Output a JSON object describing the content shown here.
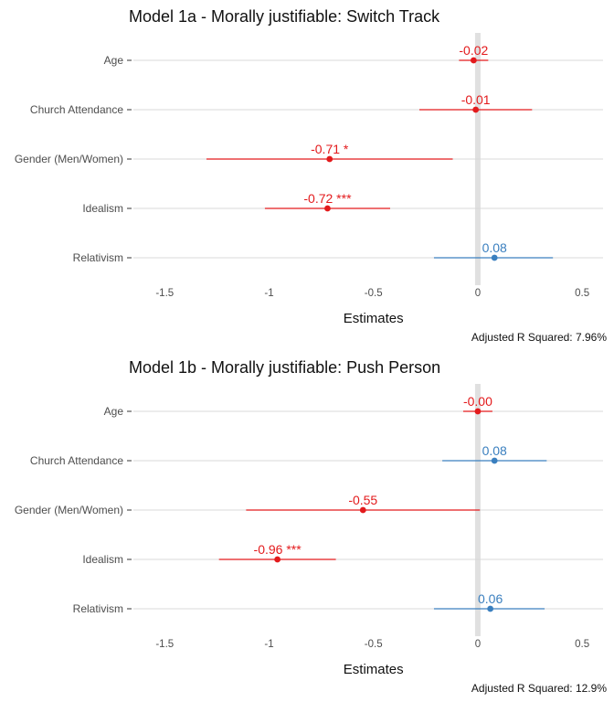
{
  "colors": {
    "negative": "#e31a1c",
    "positive": "#3a7fbf",
    "zero_line": "#e0e0e0",
    "grid": "#d9d9d9"
  },
  "chart_data": [
    {
      "type": "forest",
      "title": "Model 1a - Morally justifiable: Switch Track",
      "xlabel": "Estimates",
      "xlim": [
        -1.65,
        0.6
      ],
      "xticks": [
        -1.5,
        -1,
        -0.5,
        0,
        0.5
      ],
      "xtick_labels": [
        "-1.5",
        "-1",
        "-0.5",
        "0",
        "0.5"
      ],
      "footnote": "Adjusted R Squared: 7.96%",
      "rows": [
        {
          "term": "Age",
          "estimate": -0.02,
          "ci": [
            -0.09,
            0.05
          ],
          "label": "-0.02",
          "sign": "negative"
        },
        {
          "term": "Church Attendance",
          "estimate": -0.01,
          "ci": [
            -0.28,
            0.26
          ],
          "label": "-0.01",
          "sign": "negative"
        },
        {
          "term": "Gender (Men/Women)",
          "estimate": -0.71,
          "ci": [
            -1.3,
            -0.12
          ],
          "label": "-0.71 *",
          "sign": "negative"
        },
        {
          "term": "Idealism",
          "estimate": -0.72,
          "ci": [
            -1.02,
            -0.42
          ],
          "label": "-0.72 ***",
          "sign": "negative"
        },
        {
          "term": "Relativism",
          "estimate": 0.08,
          "ci": [
            -0.21,
            0.36
          ],
          "label": "0.08",
          "sign": "positive"
        }
      ]
    },
    {
      "type": "forest",
      "title": "Model 1b - Morally justifiable: Push Person",
      "xlabel": "Estimates",
      "xlim": [
        -1.65,
        0.6
      ],
      "xticks": [
        -1.5,
        -1,
        -0.5,
        0,
        0.5
      ],
      "xtick_labels": [
        "-1.5",
        "-1",
        "-0.5",
        "0",
        "0.5"
      ],
      "footnote": "Adjusted R Squared: 12.9%",
      "rows": [
        {
          "term": "Age",
          "estimate": -0.0,
          "ci": [
            -0.07,
            0.07
          ],
          "label": "-0.00",
          "sign": "negative"
        },
        {
          "term": "Church Attendance",
          "estimate": 0.08,
          "ci": [
            -0.17,
            0.33
          ],
          "label": "0.08",
          "sign": "positive"
        },
        {
          "term": "Gender (Men/Women)",
          "estimate": -0.55,
          "ci": [
            -1.11,
            0.01
          ],
          "label": "-0.55",
          "sign": "negative"
        },
        {
          "term": "Idealism",
          "estimate": -0.96,
          "ci": [
            -1.24,
            -0.68
          ],
          "label": "-0.96 ***",
          "sign": "negative"
        },
        {
          "term": "Relativism",
          "estimate": 0.06,
          "ci": [
            -0.21,
            0.32
          ],
          "label": "0.06",
          "sign": "positive"
        }
      ]
    }
  ]
}
